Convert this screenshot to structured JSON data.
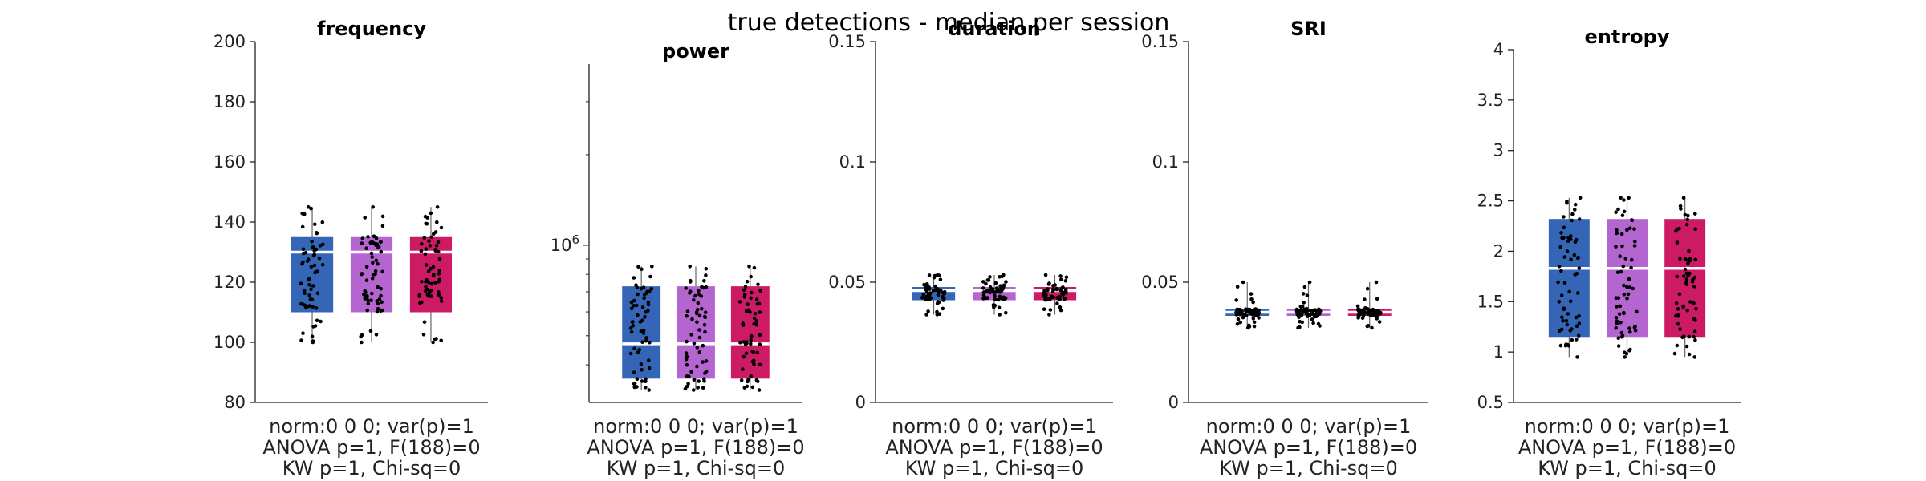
{
  "figure": {
    "suptitle": "true detections - median per session"
  },
  "colors": {
    "group1": "#3465b6",
    "group2": "#b565d0",
    "group3": "#cc1b64",
    "median": "#ffffff",
    "point": "#000000",
    "axis": "#222222"
  },
  "chart_data": [
    {
      "type": "box",
      "title": "frequency",
      "scale": "linear",
      "ylim": [
        80,
        200
      ],
      "yticks": [
        80,
        100,
        120,
        140,
        160,
        180,
        200
      ],
      "ytick_labels": [
        "80",
        "100",
        "120",
        "140",
        "160",
        "180",
        "200"
      ],
      "groups": [
        {
          "q1": 110,
          "median": 130,
          "q3": 135,
          "min": 100,
          "max": 145
        },
        {
          "q1": 110,
          "median": 130,
          "q3": 135,
          "min": 100,
          "max": 145
        },
        {
          "q1": 110,
          "median": 130,
          "q3": 135,
          "min": 100,
          "max": 145
        }
      ],
      "stats": [
        "norm:0  0  0; var(p)=1",
        "ANOVA p=1, F(188)=0",
        "KW p=1, Chi-sq=0"
      ]
    },
    {
      "type": "box",
      "title": "power",
      "scale": "log",
      "ylim": [
        300000,
        4000000
      ],
      "yticks": [
        1000000
      ],
      "ytick_labels": [
        "10^6"
      ],
      "groups": [
        {
          "q1": 360000,
          "median": 470000,
          "q3": 730000,
          "min": 330000,
          "max": 850000
        },
        {
          "q1": 360000,
          "median": 470000,
          "q3": 730000,
          "min": 330000,
          "max": 850000
        },
        {
          "q1": 360000,
          "median": 470000,
          "q3": 730000,
          "min": 330000,
          "max": 850000
        }
      ],
      "stats": [
        "norm:0  0  0; var(p)=1",
        "ANOVA p=1, F(188)=0",
        "KW p=1, Chi-sq=0"
      ]
    },
    {
      "type": "box",
      "title": "duration",
      "scale": "linear",
      "ylim": [
        0,
        0.15
      ],
      "yticks": [
        0,
        0.05,
        0.1,
        0.15
      ],
      "ytick_labels": [
        "0",
        "0.05",
        "0.1",
        "0.15"
      ],
      "groups": [
        {
          "q1": 0.0425,
          "median": 0.0465,
          "q3": 0.048,
          "min": 0.0365,
          "max": 0.053
        },
        {
          "q1": 0.0425,
          "median": 0.0465,
          "q3": 0.048,
          "min": 0.0365,
          "max": 0.053
        },
        {
          "q1": 0.0425,
          "median": 0.0465,
          "q3": 0.048,
          "min": 0.0365,
          "max": 0.053
        }
      ],
      "stats": [
        "norm:0  0  0; var(p)=1",
        "ANOVA p=1, F(188)=0",
        "KW p=1, Chi-sq=0"
      ]
    },
    {
      "type": "box",
      "title": "SRI",
      "scale": "linear",
      "ylim": [
        0,
        0.15
      ],
      "yticks": [
        0,
        0.05,
        0.1,
        0.15
      ],
      "ytick_labels": [
        "0",
        "0.05",
        "0.1",
        "0.15"
      ],
      "groups": [
        {
          "q1": 0.036,
          "median": 0.0375,
          "q3": 0.039,
          "min": 0.031,
          "max": 0.05
        },
        {
          "q1": 0.036,
          "median": 0.0375,
          "q3": 0.039,
          "min": 0.031,
          "max": 0.05
        },
        {
          "q1": 0.036,
          "median": 0.0375,
          "q3": 0.039,
          "min": 0.031,
          "max": 0.05
        }
      ],
      "stats": [
        "norm:0  0  0; var(p)=1",
        "ANOVA p=1, F(188)=0",
        "KW p=1, Chi-sq=0"
      ]
    },
    {
      "type": "box",
      "title": "entropy",
      "scale": "linear",
      "ylim": [
        0.5,
        4
      ],
      "yticks": [
        0.5,
        1,
        1.5,
        2,
        2.5,
        3,
        3.5,
        4
      ],
      "ytick_labels": [
        "0.5",
        "1",
        "1.5",
        "2",
        "2.5",
        "3",
        "3.5",
        "4"
      ],
      "groups": [
        {
          "q1": 1.15,
          "median": 1.83,
          "q3": 2.32,
          "min": 0.95,
          "max": 2.53
        },
        {
          "q1": 1.15,
          "median": 1.83,
          "q3": 2.32,
          "min": 0.95,
          "max": 2.53
        },
        {
          "q1": 1.15,
          "median": 1.83,
          "q3": 2.32,
          "min": 0.95,
          "max": 2.53
        }
      ],
      "stats": [
        "norm:0  0  0; var(p)=1",
        "ANOVA p=1, F(188)=0",
        "KW p=1, Chi-sq=0"
      ]
    }
  ]
}
